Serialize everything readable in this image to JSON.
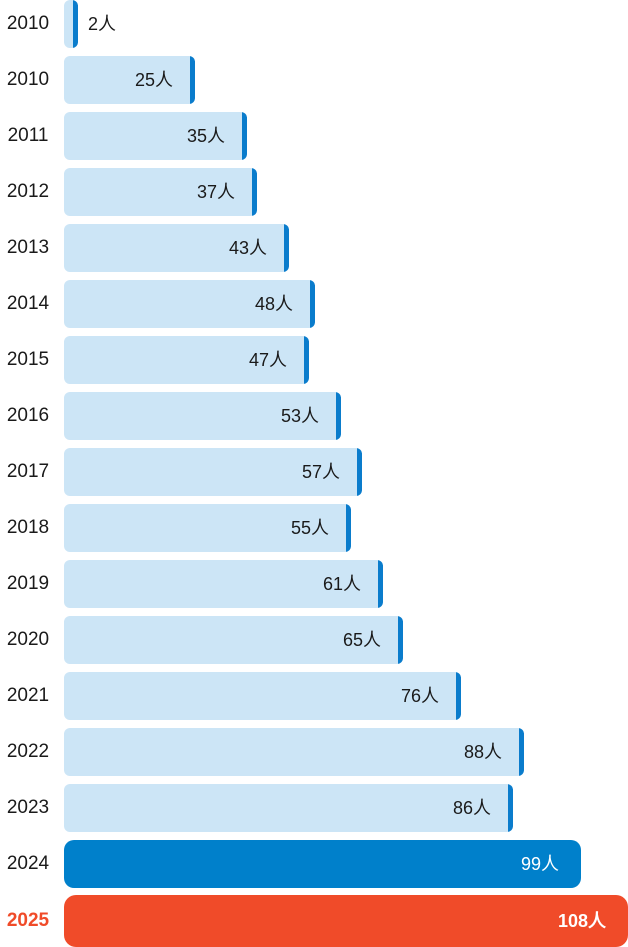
{
  "chart_data": {
    "type": "bar",
    "orientation": "horizontal",
    "unit": "人",
    "categories": [
      "2010",
      "2010",
      "2011",
      "2012",
      "2013",
      "2014",
      "2015",
      "2016",
      "2017",
      "2018",
      "2019",
      "2020",
      "2021",
      "2022",
      "2023",
      "2024",
      "2025"
    ],
    "values": [
      2,
      25,
      35,
      37,
      43,
      48,
      47,
      53,
      57,
      55,
      61,
      65,
      76,
      88,
      86,
      99,
      108
    ],
    "labels": [
      "2人",
      "25人",
      "35人",
      "37人",
      "43人",
      "48人",
      "47人",
      "53人",
      "57人",
      "55人",
      "61人",
      "65人",
      "76人",
      "88人",
      "86人",
      "99人",
      "108人"
    ],
    "xlim": [
      0,
      108
    ],
    "grid": false,
    "legend": "none",
    "colors": {
      "bar": "#cce5f6",
      "bar_cap": "#0a7ccc",
      "highlight_2024": "#0080cb",
      "highlight_2025": "#f04b29",
      "text": "#1a1a1a"
    }
  }
}
